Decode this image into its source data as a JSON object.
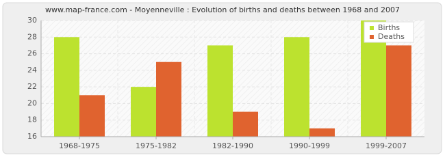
{
  "chart_data": {
    "type": "bar",
    "title": "www.map-france.com - Moyenneville : Evolution of births and deaths between 1968 and 2007",
    "categories": [
      "1968-1975",
      "1975-1982",
      "1982-1990",
      "1990-1999",
      "1999-2007"
    ],
    "series": [
      {
        "name": "Births",
        "color": "#bce22f",
        "values": [
          28,
          22,
          27,
          28,
          30
        ]
      },
      {
        "name": "Deaths",
        "color": "#e0632f",
        "values": [
          21,
          25,
          19,
          17,
          27
        ]
      }
    ],
    "ylim": [
      16,
      30
    ],
    "yticks": [
      16,
      18,
      20,
      22,
      24,
      26,
      28,
      30
    ],
    "grid": true,
    "legend": "top-right"
  }
}
